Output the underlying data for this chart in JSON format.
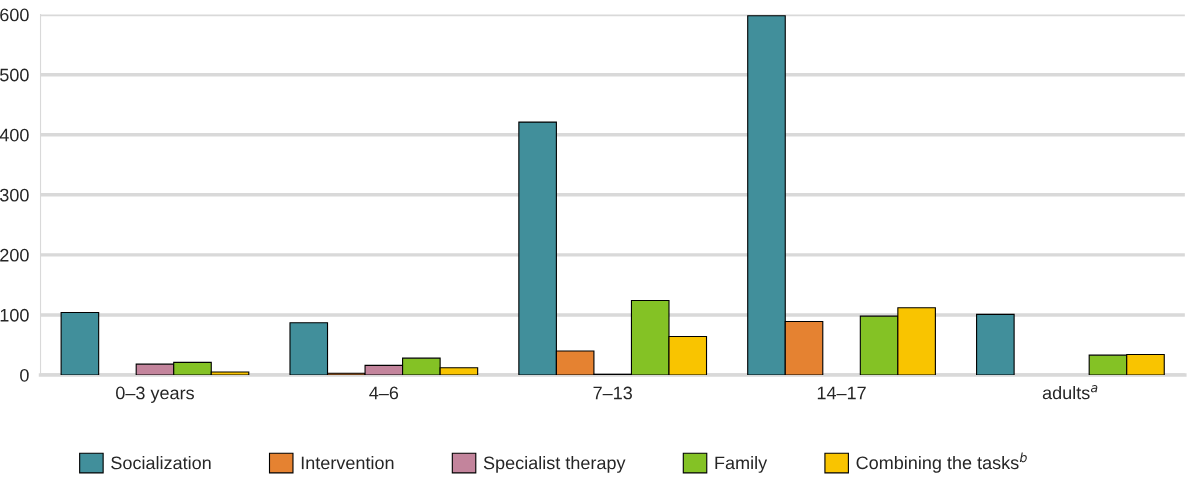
{
  "chart_data": {
    "type": "bar",
    "categories": [
      "0–3 years",
      "4–6",
      "7–13",
      "14–17",
      "adults$^{a}$"
    ],
    "series": [
      {
        "name": "Socialization",
        "color": "#418f9b",
        "values": [
          104,
          87,
          421,
          598,
          101
        ]
      },
      {
        "name": "Intervention",
        "color": "#e58231",
        "values": [
          null,
          3,
          40,
          89,
          null
        ]
      },
      {
        "name": "Specialist therapy",
        "color": "#c3849c",
        "values": [
          18,
          16,
          1,
          null,
          null
        ]
      },
      {
        "name": "Family",
        "color": "#84c225",
        "values": [
          21,
          28,
          124,
          98,
          33
        ]
      },
      {
        "name": "Combining the tasks$^{b}$",
        "color": "#f9c400",
        "values": [
          5,
          12,
          64,
          112,
          34
        ]
      }
    ],
    "ylim": [
      0,
      600
    ],
    "yticks": [
      0,
      100,
      200,
      300,
      400,
      500,
      600
    ],
    "grid": "y",
    "legend": "bottom"
  }
}
